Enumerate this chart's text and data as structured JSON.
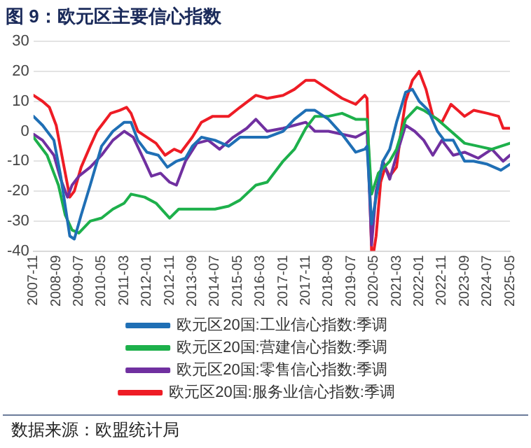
{
  "chart_data": {
    "type": "line",
    "title": "图 9：欧元区主要信心指数",
    "annotations": [
      "数据来源：欧盟统计局"
    ],
    "xlim": [
      "2007-11",
      "2025-05"
    ],
    "xticks": [
      "2007-11",
      "2008-09",
      "2009-07",
      "2010-05",
      "2011-03",
      "2012-01",
      "2012-11",
      "2013-09",
      "2014-07",
      "2015-05",
      "2016-03",
      "2017-01",
      "2017-11",
      "2018-09",
      "2019-07",
      "2020-05",
      "2021-03",
      "2022-01",
      "2022-11",
      "2023-09",
      "2024-07",
      "2025-05"
    ],
    "ylim": [
      -40,
      30
    ],
    "yticks": [
      -40,
      -30,
      -20,
      -10,
      0,
      10,
      20,
      30
    ],
    "grid": "y",
    "legend": "bottom",
    "marker": "none",
    "line_style": "solid",
    "series": [
      {
        "name": "欧元区20国:工业信心指数:季调",
        "color": "#1f6fb5",
        "x": [
          "2007-11",
          "2008-03",
          "2008-08",
          "2008-11",
          "2009-03",
          "2009-05",
          "2009-08",
          "2009-12",
          "2010-05",
          "2010-10",
          "2011-03",
          "2011-06",
          "2011-09",
          "2012-01",
          "2012-06",
          "2012-10",
          "2013-02",
          "2013-06",
          "2013-09",
          "2014-01",
          "2014-07",
          "2015-01",
          "2015-06",
          "2016-01",
          "2016-06",
          "2017-01",
          "2017-06",
          "2017-11",
          "2018-03",
          "2018-09",
          "2019-03",
          "2019-09",
          "2020-01",
          "2020-02",
          "2020-04",
          "2020-06",
          "2020-09",
          "2020-12",
          "2021-03",
          "2021-07",
          "2021-10",
          "2022-01",
          "2022-05",
          "2022-09",
          "2022-12",
          "2023-04",
          "2023-09",
          "2024-01",
          "2024-07",
          "2025-01",
          "2025-05"
        ],
        "values": [
          5,
          2,
          -3,
          -15,
          -35,
          -36,
          -28,
          -18,
          -5,
          0,
          3,
          3,
          -3,
          -7,
          -8,
          -12,
          -10,
          -9,
          -5,
          -2,
          -3,
          -5,
          -2,
          -2,
          -2,
          0,
          4,
          7,
          7,
          4,
          -1,
          -7,
          -6,
          -5,
          -31,
          -22,
          -10,
          -6,
          3,
          13,
          14,
          10,
          7,
          0,
          -3,
          -3,
          -10,
          -10,
          -11,
          -13,
          -11
        ]
      },
      {
        "name": "欧元区20国:营建信心指数:季调",
        "color": "#1db04b",
        "x": [
          "2007-11",
          "2008-05",
          "2008-10",
          "2009-01",
          "2009-04",
          "2009-07",
          "2009-12",
          "2010-05",
          "2010-10",
          "2011-03",
          "2011-06",
          "2011-12",
          "2012-05",
          "2012-11",
          "2013-03",
          "2013-09",
          "2014-03",
          "2014-07",
          "2015-01",
          "2015-06",
          "2016-01",
          "2016-06",
          "2017-01",
          "2017-06",
          "2017-11",
          "2018-03",
          "2018-09",
          "2019-03",
          "2019-09",
          "2020-02",
          "2020-04",
          "2020-07",
          "2020-12",
          "2021-03",
          "2021-07",
          "2021-12",
          "2022-03",
          "2022-09",
          "2023-03",
          "2023-09",
          "2024-03",
          "2024-09",
          "2025-05"
        ],
        "values": [
          -2,
          -8,
          -18,
          -28,
          -33,
          -34,
          -30,
          -29,
          -26,
          -24,
          -21,
          -22,
          -24,
          -29,
          -26,
          -26,
          -26,
          -26,
          -25,
          -23,
          -18,
          -17,
          -10,
          -6,
          1,
          5,
          5,
          6,
          4,
          4,
          -21,
          -14,
          -10,
          -6,
          4,
          8,
          7,
          4,
          0,
          -4,
          -5,
          -6,
          -4
        ]
      },
      {
        "name": "欧元区20国:零售信心指数:季调",
        "color": "#7030a0",
        "x": [
          "2007-11",
          "2008-03",
          "2008-08",
          "2008-11",
          "2009-02",
          "2009-04",
          "2009-07",
          "2009-12",
          "2010-05",
          "2010-10",
          "2011-03",
          "2011-07",
          "2011-12",
          "2012-03",
          "2012-07",
          "2012-11",
          "2013-02",
          "2013-06",
          "2013-11",
          "2014-04",
          "2014-09",
          "2015-03",
          "2015-09",
          "2016-01",
          "2016-06",
          "2017-01",
          "2017-06",
          "2017-11",
          "2018-03",
          "2018-09",
          "2019-03",
          "2019-09",
          "2020-02",
          "2020-04",
          "2020-06",
          "2020-09",
          "2020-12",
          "2021-03",
          "2021-07",
          "2021-11",
          "2022-03",
          "2022-07",
          "2022-11",
          "2023-04",
          "2023-09",
          "2024-03",
          "2024-09",
          "2025-02",
          "2025-05"
        ],
        "values": [
          -1,
          -3,
          -8,
          -16,
          -22,
          -18,
          -15,
          -12,
          -8,
          -3,
          0,
          -2,
          -10,
          -15,
          -14,
          -17,
          -18,
          -10,
          -4,
          -3,
          -6,
          -2,
          1,
          4,
          0,
          1,
          2,
          3,
          0,
          0,
          -1,
          -2,
          0,
          -38,
          -20,
          -10,
          -16,
          -8,
          2,
          0,
          -3,
          -8,
          -3,
          -8,
          -7,
          -9,
          -6,
          -10,
          -8
        ]
      },
      {
        "name": "欧元区20国:服务业信心指数:季调",
        "color": "#ee1c25",
        "x": [
          "2007-11",
          "2008-03",
          "2008-06",
          "2008-09",
          "2008-12",
          "2009-03",
          "2009-05",
          "2009-08",
          "2009-12",
          "2010-03",
          "2010-06",
          "2010-09",
          "2011-01",
          "2011-04",
          "2011-06",
          "2011-09",
          "2012-01",
          "2012-05",
          "2012-09",
          "2013-01",
          "2013-04",
          "2013-09",
          "2014-01",
          "2014-06",
          "2015-01",
          "2015-06",
          "2016-01",
          "2016-06",
          "2017-01",
          "2017-06",
          "2017-11",
          "2018-03",
          "2018-09",
          "2019-03",
          "2019-09",
          "2020-01",
          "2020-02",
          "2020-04",
          "2020-05",
          "2020-06",
          "2020-08",
          "2020-10",
          "2020-12",
          "2021-03",
          "2021-05",
          "2021-07",
          "2021-10",
          "2022-01",
          "2022-04",
          "2022-07",
          "2022-11",
          "2023-03",
          "2023-06",
          "2023-09",
          "2024-01",
          "2024-07",
          "2024-12",
          "2025-02",
          "2025-05"
        ],
        "values": [
          12,
          10,
          8,
          2,
          -10,
          -22,
          -20,
          -12,
          -5,
          0,
          3,
          6,
          7,
          8,
          6,
          0,
          -2,
          -4,
          -8,
          -6,
          -7,
          -2,
          3,
          5,
          5,
          8,
          12,
          11,
          12,
          14,
          17,
          17,
          14,
          11,
          9,
          12,
          11,
          -40,
          -40,
          -35,
          -17,
          -12,
          -15,
          -12,
          0,
          10,
          17,
          20,
          14,
          5,
          3,
          9,
          7,
          5,
          7,
          6,
          5,
          1,
          1
        ]
      }
    ]
  }
}
